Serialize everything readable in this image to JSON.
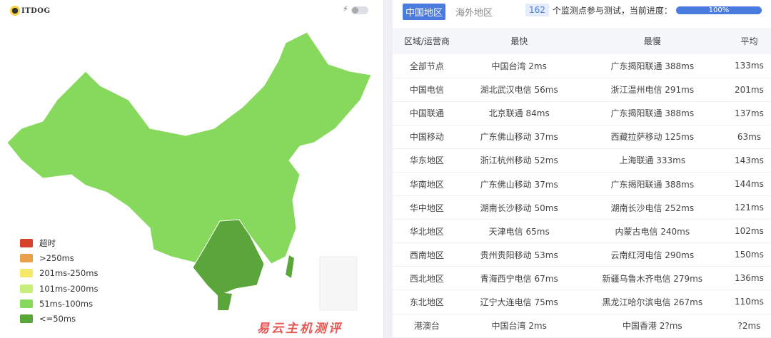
{
  "header": {
    "logo_text": "ITDOG",
    "toggle_icon": "bolt-icon"
  },
  "legend": [
    {
      "label": "超时",
      "color": "#d9402b"
    },
    {
      "label": ">250ms",
      "color": "#e8a14a"
    },
    {
      "label": "201ms-250ms",
      "color": "#f4e96a"
    },
    {
      "label": "101ms-200ms",
      "color": "#c8ef7c"
    },
    {
      "label": "51ms-100ms",
      "color": "#86d95c"
    },
    {
      "label": "<=50ms",
      "color": "#5aa63a"
    }
  ],
  "tabs": [
    {
      "label": "中国地区",
      "active": true
    },
    {
      "label": "海外地区",
      "active": false
    }
  ],
  "status": {
    "count": "162",
    "text": "个监测点参与测试，当前进度：",
    "progress": "100%",
    "progress_value": 100
  },
  "table": {
    "headers": [
      "区域/运营商",
      "最快",
      "最慢",
      "平均"
    ],
    "rows": [
      [
        "全部节点",
        "中国台湾 2ms",
        "广东揭阳联通 388ms",
        "133ms"
      ],
      [
        "中国电信",
        "湖北武汉电信 56ms",
        "浙江温州电信 291ms",
        "201ms"
      ],
      [
        "中国联通",
        "北京联通 84ms",
        "广东揭阳联通 388ms",
        "137ms"
      ],
      [
        "中国移动",
        "广东佛山移动 37ms",
        "西藏拉萨移动 125ms",
        "63ms"
      ],
      [
        "华东地区",
        "浙江杭州移动 52ms",
        "上海联通 333ms",
        "143ms"
      ],
      [
        "华南地区",
        "广东佛山移动 37ms",
        "广东揭阳联通 388ms",
        "144ms"
      ],
      [
        "华中地区",
        "湖南长沙移动 50ms",
        "湖南长沙电信 252ms",
        "121ms"
      ],
      [
        "华北地区",
        "天津电信 65ms",
        "内蒙古电信 240ms",
        "102ms"
      ],
      [
        "西南地区",
        "贵州贵阳移动 53ms",
        "云南红河电信 290ms",
        "150ms"
      ],
      [
        "西北地区",
        "青海西宁电信 67ms",
        "新疆乌鲁木齐电信 279ms",
        "136ms"
      ],
      [
        "东北地区",
        "辽宁大连电信 75ms",
        "黑龙江哈尔滨电信 267ms",
        "110ms"
      ],
      [
        "港澳台",
        "中国台湾 2ms",
        "中国香港 2?ms",
        "?2ms"
      ]
    ]
  },
  "watermark": "易云主机测评"
}
